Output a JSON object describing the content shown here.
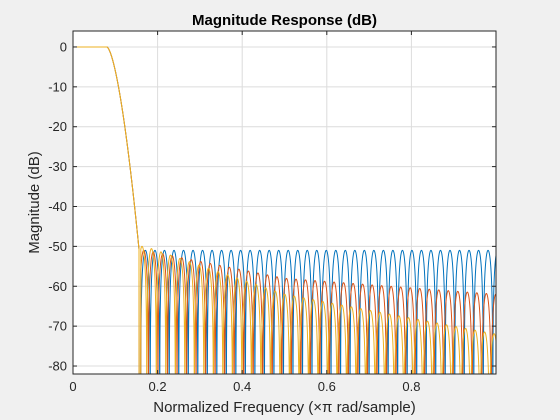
{
  "chart_data": {
    "type": "line",
    "title": "Magnitude Response (dB)",
    "xlabel": "Normalized Frequency (×π rad/sample)",
    "ylabel": "Magnitude (dB)",
    "xlim": [
      0,
      1
    ],
    "ylim": [
      -82,
      4
    ],
    "xticks": [
      0,
      0.2,
      0.4,
      0.6,
      0.8
    ],
    "xtick_labels": [
      "0",
      "0.2",
      "0.4",
      "0.6",
      "0.8"
    ],
    "yticks": [
      0,
      -10,
      -20,
      -30,
      -40,
      -50,
      -60,
      -70,
      -80
    ],
    "ytick_labels": [
      "0",
      "-10",
      "-20",
      "-30",
      "-40",
      "-50",
      "-60",
      "-70",
      "-80"
    ],
    "grid": true,
    "passband_edge": 0.08,
    "stopband_edge": 0.16,
    "series": [
      {
        "color": "#0072bd",
        "passband_db": 0,
        "stopband_ripple_peaks_db": [
          [
            0.17,
            -51
          ],
          [
            0.5,
            -51
          ],
          [
            1.0,
            -51
          ]
        ],
        "sidelobe_period": 0.0225
      },
      {
        "color": "#d95319",
        "passband_db": 0,
        "stopband_ripple_peaks_db": [
          [
            0.17,
            -51
          ],
          [
            0.5,
            -58
          ],
          [
            1.0,
            -62
          ]
        ],
        "sidelobe_period": 0.0225
      },
      {
        "color": "#edb120",
        "passband_db": 0,
        "stopband_ripple_peaks_db": [
          [
            0.17,
            -50
          ],
          [
            0.5,
            -62
          ],
          [
            1.0,
            -72
          ]
        ],
        "sidelobe_period": 0.0225
      }
    ]
  }
}
